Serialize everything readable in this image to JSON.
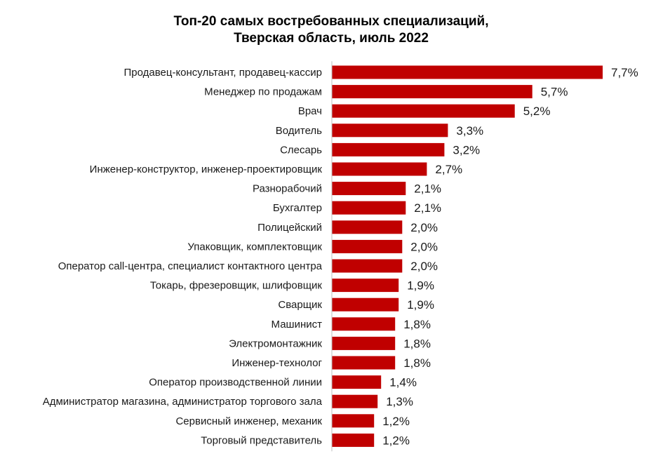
{
  "chart_data": {
    "type": "bar",
    "orientation": "horizontal",
    "title_lines": [
      "Топ-20 самых востребованных специализаций,",
      "Тверская область, июль 2022"
    ],
    "xlabel": "",
    "ylabel": "",
    "xlim": [
      0,
      7.7
    ],
    "grid": false,
    "legend": "none",
    "bar_color": "#C00000",
    "axis_color": "#BFBFBF",
    "categories": [
      "Продавец-консультант, продавец-кассир",
      "Менеджер по продажам",
      "Врач",
      "Водитель",
      "Слесарь",
      "Инженер-конструктор, инженер-проектировщик",
      "Разнорабочий",
      "Бухгалтер",
      "Полицейский",
      "Упаковщик, комплектовщик",
      "Оператор call-центра, специалист контактного центра",
      "Токарь, фрезеровщик, шлифовщик",
      "Сварщик",
      "Машинист",
      "Электромонтажник",
      "Инженер-технолог",
      "Оператор производственной линии",
      "Администратор магазина, администратор торгового зала",
      "Сервисный инженер, механик",
      "Торговый представитель"
    ],
    "values": [
      7.7,
      5.7,
      5.2,
      3.3,
      3.2,
      2.7,
      2.1,
      2.1,
      2.0,
      2.0,
      2.0,
      1.9,
      1.9,
      1.8,
      1.8,
      1.8,
      1.4,
      1.3,
      1.2,
      1.2
    ],
    "value_labels": [
      "7,7%",
      "5,7%",
      "5,2%",
      "3,3%",
      "3,2%",
      "2,7%",
      "2,1%",
      "2,1%",
      "2,0%",
      "2,0%",
      "2,0%",
      "1,9%",
      "1,9%",
      "1,8%",
      "1,8%",
      "1,8%",
      "1,4%",
      "1,3%",
      "1,2%",
      "1,2%"
    ]
  }
}
